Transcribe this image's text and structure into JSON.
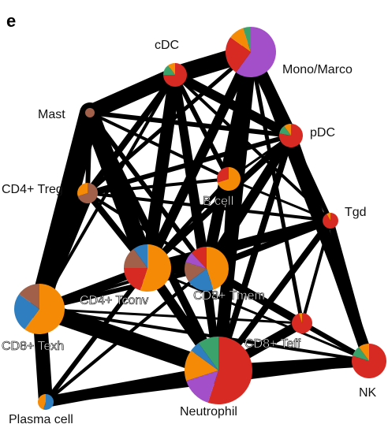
{
  "panel_label": "e",
  "colors": {
    "red": "#d62a22",
    "orange": "#f58a07",
    "blue": "#2f7fc0",
    "purple": "#a24fc9",
    "green": "#3aa26a",
    "brown": "#a0604a",
    "edge": "#000000"
  },
  "nodes": [
    {
      "id": "cdc",
      "label": "cDC",
      "slices": [
        [
          "red",
          0.75
        ],
        [
          "green",
          0.15
        ],
        [
          "orange",
          0.1
        ]
      ]
    },
    {
      "id": "mono",
      "label": "Mono/Marco",
      "slices": [
        [
          "purple",
          0.6
        ],
        [
          "red",
          0.25
        ],
        [
          "orange",
          0.1
        ],
        [
          "green",
          0.05
        ]
      ]
    },
    {
      "id": "mast",
      "label": "Mast",
      "slices": [
        [
          "brown",
          1.0
        ]
      ]
    },
    {
      "id": "pdc",
      "label": "pDC",
      "slices": [
        [
          "red",
          0.78
        ],
        [
          "green",
          0.12
        ],
        [
          "orange",
          0.1
        ]
      ]
    },
    {
      "id": "cd4treg",
      "label": "CD4+ Treg",
      "slices": [
        [
          "brown",
          0.7
        ],
        [
          "orange",
          0.3
        ]
      ]
    },
    {
      "id": "bcell",
      "label": "B cell",
      "slices": [
        [
          "orange",
          0.7
        ],
        [
          "red",
          0.3
        ]
      ]
    },
    {
      "id": "tgd",
      "label": "Tgd",
      "slices": [
        [
          "red",
          0.92
        ],
        [
          "orange",
          0.08
        ]
      ]
    },
    {
      "id": "cd4tconv",
      "label": "CD4+ Tconv",
      "slices": [
        [
          "orange",
          0.55
        ],
        [
          "red",
          0.2
        ],
        [
          "brown",
          0.15
        ],
        [
          "blue",
          0.1
        ]
      ]
    },
    {
      "id": "cd8tmem",
      "label": "CD8+ Tmem",
      "slices": [
        [
          "orange",
          0.45
        ],
        [
          "blue",
          0.2
        ],
        [
          "brown",
          0.15
        ],
        [
          "purple",
          0.08
        ],
        [
          "red",
          0.12
        ]
      ]
    },
    {
      "id": "cd8texh",
      "label": "CD8+ Texh",
      "slices": [
        [
          "orange",
          0.6
        ],
        [
          "blue",
          0.25
        ],
        [
          "brown",
          0.15
        ]
      ]
    },
    {
      "id": "cd8teff",
      "label": "CD8+ Teff",
      "slices": [
        [
          "red",
          0.95
        ],
        [
          "orange",
          0.05
        ]
      ]
    },
    {
      "id": "nk",
      "label": "NK",
      "slices": [
        [
          "red",
          0.8
        ],
        [
          "green",
          0.1
        ],
        [
          "orange",
          0.1
        ]
      ]
    },
    {
      "id": "plasma",
      "label": "Plasma cell",
      "slices": [
        [
          "blue",
          0.55
        ],
        [
          "orange",
          0.45
        ]
      ]
    },
    {
      "id": "neutrophil",
      "label": "Neutrophil",
      "slices": [
        [
          "red",
          0.55
        ],
        [
          "purple",
          0.15
        ],
        [
          "orange",
          0.15
        ],
        [
          "blue",
          0.05
        ],
        [
          "green",
          0.1
        ]
      ]
    }
  ],
  "edges": [
    [
      "cdc",
      "mono",
      22
    ],
    [
      "cdc",
      "mast",
      20
    ],
    [
      "cdc",
      "pdc",
      12
    ],
    [
      "cdc",
      "bcell",
      6
    ],
    [
      "cdc",
      "cd4tconv",
      16
    ],
    [
      "cdc",
      "cd8tmem",
      10
    ],
    [
      "cdc",
      "cd4treg",
      8
    ],
    [
      "cdc",
      "neutrophil",
      10
    ],
    [
      "cdc",
      "tgd",
      4
    ],
    [
      "mono",
      "mast",
      10
    ],
    [
      "mono",
      "pdc",
      16
    ],
    [
      "mono",
      "cd4tconv",
      12
    ],
    [
      "mono",
      "cd8tmem",
      14
    ],
    [
      "mono",
      "neutrophil",
      16
    ],
    [
      "mono",
      "bcell",
      6
    ],
    [
      "mono",
      "nk",
      6
    ],
    [
      "mono",
      "cd4treg",
      5
    ],
    [
      "mast",
      "cd8texh",
      26
    ],
    [
      "mast",
      "cd4tconv",
      22
    ],
    [
      "mast",
      "cd4treg",
      6
    ],
    [
      "mast",
      "neutrophil",
      10
    ],
    [
      "mast",
      "pdc",
      6
    ],
    [
      "mast",
      "cd8tmem",
      6
    ],
    [
      "pdc",
      "nk",
      14
    ],
    [
      "pdc",
      "cd4tconv",
      8
    ],
    [
      "pdc",
      "cd8tmem",
      12
    ],
    [
      "pdc",
      "tgd",
      6
    ],
    [
      "pdc",
      "cd4treg",
      6
    ],
    [
      "pdc",
      "neutrophil",
      8
    ],
    [
      "pdc",
      "bcell",
      3
    ],
    [
      "cd4treg",
      "cd8texh",
      16
    ],
    [
      "cd4treg",
      "cd4tconv",
      8
    ],
    [
      "cd4treg",
      "bcell",
      4
    ],
    [
      "cd4treg",
      "tgd",
      4
    ],
    [
      "cd4treg",
      "cd8tmem",
      4
    ],
    [
      "bcell",
      "cd8tmem",
      6
    ],
    [
      "bcell",
      "cd4tconv",
      5
    ],
    [
      "bcell",
      "tgd",
      3
    ],
    [
      "bcell",
      "neutrophil",
      4
    ],
    [
      "tgd",
      "cd4tconv",
      12
    ],
    [
      "tgd",
      "cd8tmem",
      8
    ],
    [
      "tgd",
      "nk",
      8
    ],
    [
      "tgd",
      "neutrophil",
      8
    ],
    [
      "tgd",
      "cd8teff",
      4
    ],
    [
      "tgd",
      "cd8texh",
      4
    ],
    [
      "cd4tconv",
      "cd8tmem",
      14
    ],
    [
      "cd4tconv",
      "cd8texh",
      10
    ],
    [
      "cd4tconv",
      "neutrophil",
      12
    ],
    [
      "cd4tconv",
      "plasma",
      6
    ],
    [
      "cd4tconv",
      "nk",
      3
    ],
    [
      "cd8tmem",
      "cd8teff",
      10
    ],
    [
      "cd8tmem",
      "nk",
      6
    ],
    [
      "cd8tmem",
      "cd8texh",
      6
    ],
    [
      "cd8tmem",
      "neutrophil",
      8
    ],
    [
      "cd8tmem",
      "plasma",
      4
    ],
    [
      "cd8texh",
      "neutrophil",
      22
    ],
    [
      "cd8texh",
      "plasma",
      18
    ],
    [
      "cd8texh",
      "nk",
      4
    ],
    [
      "cd8texh",
      "cd8teff",
      3
    ],
    [
      "cd8texh",
      "tgd",
      3
    ],
    [
      "plasma",
      "neutrophil",
      14
    ],
    [
      "plasma",
      "nk",
      8
    ],
    [
      "plasma",
      "cd8tmem",
      4
    ],
    [
      "neutrophil",
      "nk",
      14
    ],
    [
      "neutrophil",
      "cd8teff",
      12
    ],
    [
      "cd8teff",
      "nk",
      6
    ],
    [
      "mast",
      "bcell",
      4
    ],
    [
      "mono",
      "cd8teff",
      5
    ],
    [
      "cdc",
      "cd8texh",
      4
    ]
  ]
}
